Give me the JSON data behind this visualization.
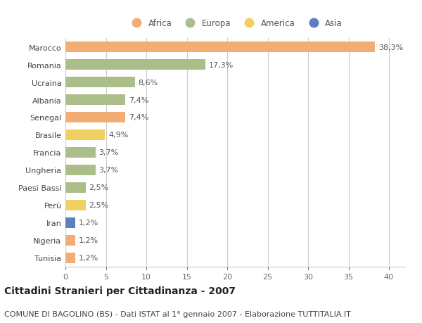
{
  "countries": [
    "Marocco",
    "Romania",
    "Ucraina",
    "Albania",
    "Senegal",
    "Brasile",
    "Francia",
    "Ungheria",
    "Paesi Bassi",
    "Perù",
    "Iran",
    "Nigeria",
    "Tunisia"
  ],
  "values": [
    38.3,
    17.3,
    8.6,
    7.4,
    7.4,
    4.9,
    3.7,
    3.7,
    2.5,
    2.5,
    1.2,
    1.2,
    1.2
  ],
  "labels": [
    "38,3%",
    "17,3%",
    "8,6%",
    "7,4%",
    "7,4%",
    "4,9%",
    "3,7%",
    "3,7%",
    "2,5%",
    "2,5%",
    "1,2%",
    "1,2%",
    "1,2%"
  ],
  "continents": [
    "Africa",
    "Europa",
    "Europa",
    "Europa",
    "Africa",
    "America",
    "Europa",
    "Europa",
    "Europa",
    "America",
    "Asia",
    "Africa",
    "Africa"
  ],
  "colors": {
    "Africa": "#F2AE72",
    "Europa": "#ABBE8A",
    "America": "#F0D060",
    "Asia": "#5B7FBF"
  },
  "xlim": [
    0,
    42
  ],
  "xticks": [
    0,
    5,
    10,
    15,
    20,
    25,
    30,
    35,
    40
  ],
  "title": "Cittadini Stranieri per Cittadinanza - 2007",
  "subtitle": "COMUNE DI BAGOLINO (BS) - Dati ISTAT al 1° gennaio 2007 - Elaborazione TUTTITALIA.IT",
  "bg_color": "#ffffff",
  "bar_height": 0.6,
  "label_fontsize": 8,
  "tick_fontsize": 8,
  "title_fontsize": 10,
  "subtitle_fontsize": 8,
  "legend_order": [
    "Africa",
    "Europa",
    "America",
    "Asia"
  ]
}
